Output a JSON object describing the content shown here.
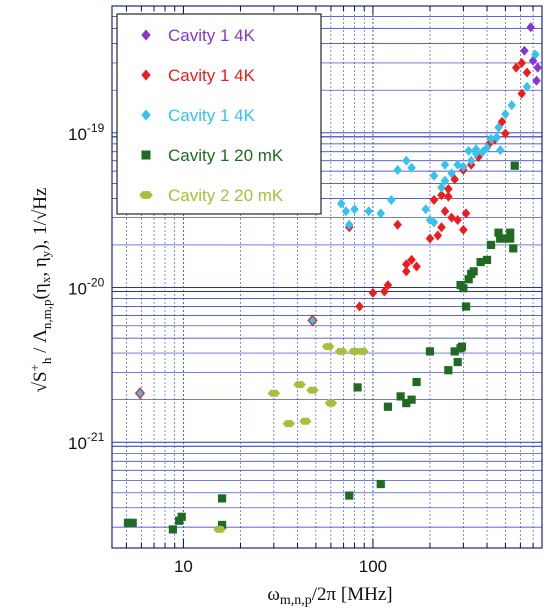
{
  "chart_data": {
    "type": "scatter",
    "title": "",
    "xlabel": "ωm,n,p/2π [MHz]",
    "ylabel": "√S+h / Λn,m,p(ηx, ηy), 1/√Hz",
    "x_scale": "log",
    "y_scale": "log",
    "xlim": [
      4.2,
      780
    ],
    "ylim": [
      2.2e-22,
      7e-19
    ],
    "x_tick_labels": [
      {
        "value": 10,
        "label": "10"
      },
      {
        "value": 100,
        "label": "100"
      }
    ],
    "y_tick_labels": [
      {
        "value": 1e-21,
        "label": "10-21",
        "mantissa": "10",
        "exponent": "-21"
      },
      {
        "value": 1e-20,
        "label": "10-20",
        "mantissa": "10",
        "exponent": "-20"
      },
      {
        "value": 1e-19,
        "label": "10-19",
        "mantissa": "10",
        "exponent": "-19"
      }
    ],
    "grid": true,
    "legend_position": "top-left",
    "series": [
      {
        "name": "Cavity 1 4K",
        "color": "#8a35d0",
        "marker": "diamond",
        "points": [
          [
            680,
            5.1e-19
          ],
          [
            630,
            3.6e-19
          ],
          [
            700,
            3.1e-19
          ],
          [
            740,
            2.8e-19
          ],
          [
            730,
            2.3e-19
          ]
        ]
      },
      {
        "name": "Cavity 1 4K",
        "color": "#ee1c1c",
        "marker": "diamond",
        "points": [
          [
            570,
            2.8e-19
          ],
          [
            610,
            3e-19
          ],
          [
            650,
            2.6e-19
          ],
          [
            610,
            1.9e-19
          ],
          [
            480,
            1.25e-19
          ],
          [
            500,
            1.05e-19
          ],
          [
            410,
            9e-20
          ],
          [
            360,
            7.4e-20
          ],
          [
            330,
            6.6e-20
          ],
          [
            300,
            6.1e-20
          ],
          [
            270,
            5.3e-20
          ],
          [
            250,
            4.6e-20
          ],
          [
            230,
            4.2e-20
          ],
          [
            210,
            3.9e-20
          ],
          [
            240,
            3.3e-20
          ],
          [
            260,
            3e-20
          ],
          [
            230,
            2.6e-20
          ],
          [
            220,
            2.3e-20
          ],
          [
            200,
            2.2e-20
          ],
          [
            160,
            1.6e-20
          ],
          [
            170,
            1.45e-20
          ],
          [
            150,
            1.35e-20
          ],
          [
            120,
            1.1e-20
          ],
          [
            100,
            9.8e-21
          ],
          [
            85,
            8e-21
          ],
          [
            75,
            2.6e-20
          ],
          [
            135,
            2.7e-20
          ],
          [
            115,
            1e-20
          ],
          [
            150,
            1.5e-20
          ],
          [
            280,
            2.9e-20
          ],
          [
            300,
            2.5e-20
          ],
          [
            310,
            3.2e-20
          ],
          [
            440,
            9.6e-20
          ],
          [
            250,
            4.1e-20
          ]
        ]
      },
      {
        "name": "Cavity 1 4K",
        "color": "#35c2ee",
        "marker": "diamond",
        "points": [
          [
            720,
            3.4e-19
          ],
          [
            650,
            2.1e-19
          ],
          [
            540,
            1.6e-19
          ],
          [
            500,
            1.4e-19
          ],
          [
            460,
            1.15e-19
          ],
          [
            420,
            9.7e-20
          ],
          [
            400,
            8.5e-20
          ],
          [
            470,
            8.2e-20
          ],
          [
            380,
            8e-20
          ],
          [
            350,
            7.8e-20
          ],
          [
            330,
            7e-20
          ],
          [
            300,
            6.4e-20
          ],
          [
            280,
            6.6e-20
          ],
          [
            260,
            5.8e-20
          ],
          [
            240,
            5.2e-20
          ],
          [
            230,
            4.7e-20
          ],
          [
            210,
            5.6e-20
          ],
          [
            190,
            3.4e-20
          ],
          [
            200,
            2.9e-20
          ],
          [
            210,
            2.8e-20
          ],
          [
            150,
            7e-20
          ],
          [
            135,
            6.1e-20
          ],
          [
            125,
            3.9e-20
          ],
          [
            110,
            3.2e-20
          ],
          [
            95,
            3.3e-20
          ],
          [
            80,
            3.4e-20
          ],
          [
            72,
            3.3e-20
          ],
          [
            68,
            3.7e-20
          ],
          [
            75,
            2.7e-20
          ],
          [
            160,
            6.3e-20
          ],
          [
            350,
            8.3e-20
          ],
          [
            320,
            8.1e-20
          ],
          [
            450,
            9.9e-20
          ],
          [
            240,
            6.6e-20
          ],
          [
            48,
            6.5e-21
          ],
          [
            5.9,
            2.2e-21
          ]
        ]
      },
      {
        "name": "Cavity 1 20 mK",
        "color": "#1f6b22",
        "marker": "square",
        "points": [
          [
            560,
            6.5e-20
          ],
          [
            530,
            2.4e-20
          ],
          [
            510,
            2.2e-20
          ],
          [
            470,
            2.2e-20
          ],
          [
            470,
            2.2e-20
          ],
          [
            530,
            2.2e-20
          ],
          [
            460,
            2.4e-20
          ],
          [
            550,
            1.9e-20
          ],
          [
            420,
            2e-20
          ],
          [
            400,
            1.6e-20
          ],
          [
            370,
            1.55e-20
          ],
          [
            340,
            1.35e-20
          ],
          [
            330,
            1.3e-20
          ],
          [
            300,
            1.05e-20
          ],
          [
            290,
            1.1e-20
          ],
          [
            320,
            1.2e-20
          ],
          [
            310,
            8e-21
          ],
          [
            295,
            4.4e-21
          ],
          [
            290,
            4.3e-21
          ],
          [
            270,
            4.1e-21
          ],
          [
            280,
            3.5e-21
          ],
          [
            250,
            3.1e-21
          ],
          [
            200,
            4.1e-21
          ],
          [
            170,
            2.6e-21
          ],
          [
            160,
            2e-21
          ],
          [
            150,
            1.9e-21
          ],
          [
            140,
            2.1e-21
          ],
          [
            120,
            1.8e-21
          ],
          [
            83,
            2.4e-21
          ],
          [
            110,
            5.7e-22
          ],
          [
            75,
            4.8e-22
          ],
          [
            16,
            4.6e-22
          ],
          [
            9.8,
            3.5e-22
          ],
          [
            9.5,
            3.3e-22
          ],
          [
            8.8,
            2.9e-22
          ],
          [
            5.4,
            3.2e-22
          ],
          [
            5.1,
            3.2e-22
          ],
          [
            16,
            3.1e-22
          ]
        ]
      },
      {
        "name": "Cavity 2 20 mK",
        "color": "#a6c03a",
        "marker": "hexagon",
        "points": [
          [
            58,
            4.4e-21
          ],
          [
            68,
            4.1e-21
          ],
          [
            80,
            4.1e-21
          ],
          [
            88,
            4.1e-21
          ],
          [
            41,
            2.5e-21
          ],
          [
            48,
            2.3e-21
          ],
          [
            30,
            2.2e-21
          ],
          [
            60,
            1.9e-21
          ],
          [
            44,
            1.45e-21
          ],
          [
            36,
            1.4e-21
          ],
          [
            15.5,
            2.9e-22
          ]
        ]
      }
    ]
  }
}
